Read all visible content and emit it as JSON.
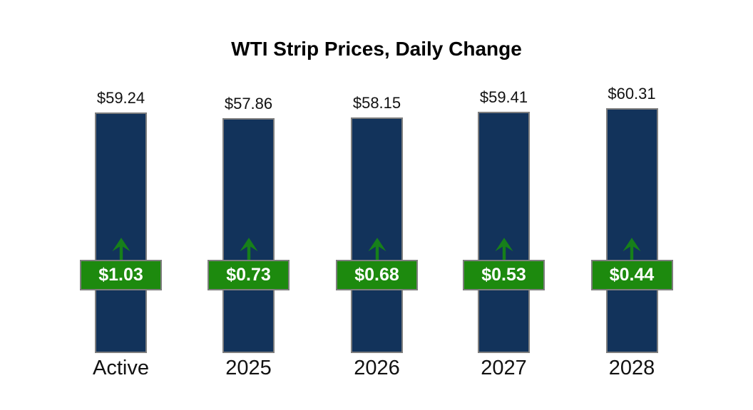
{
  "chart_data": {
    "type": "bar",
    "title": "WTI Strip Prices, Daily Change",
    "categories": [
      "Active",
      "2025",
      "2026",
      "2027",
      "2028"
    ],
    "series": [
      {
        "name": "Strip Price",
        "values": [
          59.24,
          57.86,
          58.15,
          59.41,
          60.31
        ],
        "labels": [
          "$59.24",
          "$57.86",
          "$58.15",
          "$59.41",
          "$60.31"
        ]
      },
      {
        "name": "Daily Change",
        "values": [
          1.03,
          0.73,
          0.68,
          0.53,
          0.44
        ],
        "labels": [
          "$1.03",
          "$0.73",
          "$0.68",
          "$0.53",
          "$0.44"
        ]
      }
    ],
    "xlabel": "",
    "ylabel": "",
    "ylim": [
      0,
      60.31
    ],
    "grid": false,
    "legend": false,
    "annotations": {
      "change_direction": "up",
      "indicator_icon": "up-arrow-icon"
    },
    "colors": {
      "bar_fill": "#12335B",
      "bar_border": "#7E7E7E",
      "badge_fill": "#1D8A0E",
      "badge_border": "#7E7E7E",
      "badge_text": "#FFFFFF",
      "arrow": "#17801A",
      "label_text": "#111111",
      "title_text": "#000000",
      "background": "#FFFFFF"
    }
  }
}
